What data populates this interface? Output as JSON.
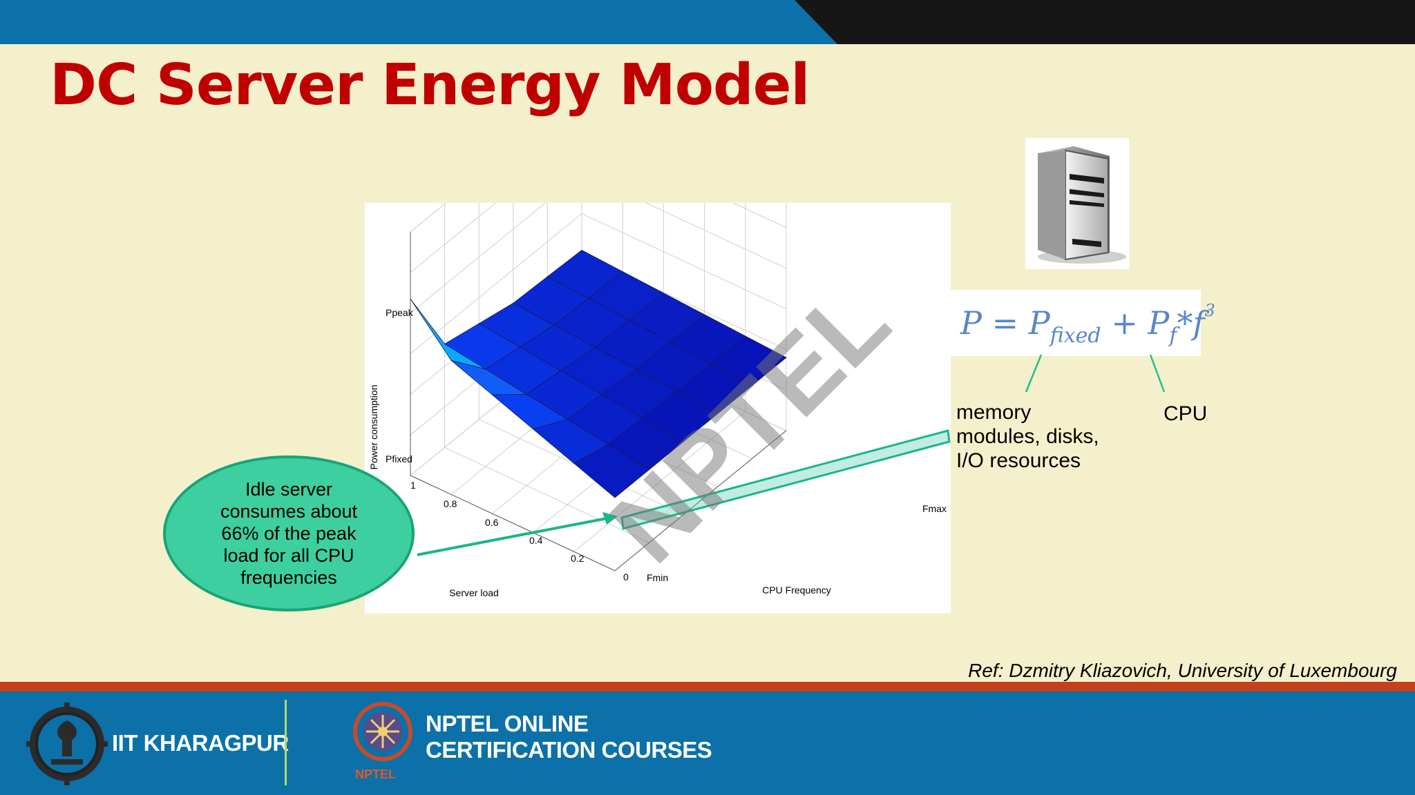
{
  "slide": {
    "title": "DC Server Energy Model",
    "reference": "Ref: Dzmitry Kliazovich, University of Luxembourg",
    "colors": {
      "title": "#c00000",
      "background": "#f5f0cc",
      "footer": "#0c71a8",
      "accent_strip": "#c3421b",
      "callout": "#3ecfa0",
      "formula": "#5a86c8"
    }
  },
  "server_icon": {
    "icon": "server-tower-icon"
  },
  "formula": {
    "P": "P",
    "equals": " = ",
    "P_fixed": "P",
    "fixed_sub": "fixed",
    "plus": " + ",
    "P_f": "P",
    "f_sub": "f",
    "times_f": "*f",
    "cube": "3"
  },
  "annotations": {
    "left": "memory\nmodules, disks,\nI/O resources",
    "right": "CPU"
  },
  "callout": {
    "text": "Idle server\nconsumes about\n66% of the peak\nload for all CPU\nfrequencies"
  },
  "chart_data": {
    "type": "surface3d",
    "title": "",
    "xlabel": "CPU Frequency",
    "ylabel": "Server load",
    "zlabel": "Power consumption",
    "x_ticks": [
      "Fmin",
      "Fmax"
    ],
    "y_ticks": [
      "0",
      "0.2",
      "0.4",
      "0.6",
      "0.8",
      "1"
    ],
    "z_ticks": [
      "Pfixed",
      "Ppeak"
    ],
    "surface": [
      [
        0.66,
        0.66,
        0.66,
        0.66,
        0.66,
        0.66
      ],
      [
        0.668,
        0.669,
        0.67,
        0.675,
        0.68,
        0.71
      ],
      [
        0.676,
        0.678,
        0.68,
        0.69,
        0.7,
        0.76
      ],
      [
        0.684,
        0.687,
        0.69,
        0.705,
        0.72,
        0.81
      ],
      [
        0.692,
        0.696,
        0.7,
        0.72,
        0.74,
        0.86
      ],
      [
        0.7,
        0.705,
        0.71,
        0.735,
        0.76,
        1.0
      ]
    ],
    "surface_note_rows": "server load 0 to 1",
    "surface_note_cols": "CPU frequency Fmax to Fmin"
  },
  "footer": {
    "institute": "IIT KHARAGPUR",
    "program": "NPTEL ONLINE\nCERTIFICATION COURSES",
    "program_badge": "NPTEL",
    "iit_logo": "iit-kharagpur-emblem",
    "nptel_logo": "nptel-emblem"
  }
}
